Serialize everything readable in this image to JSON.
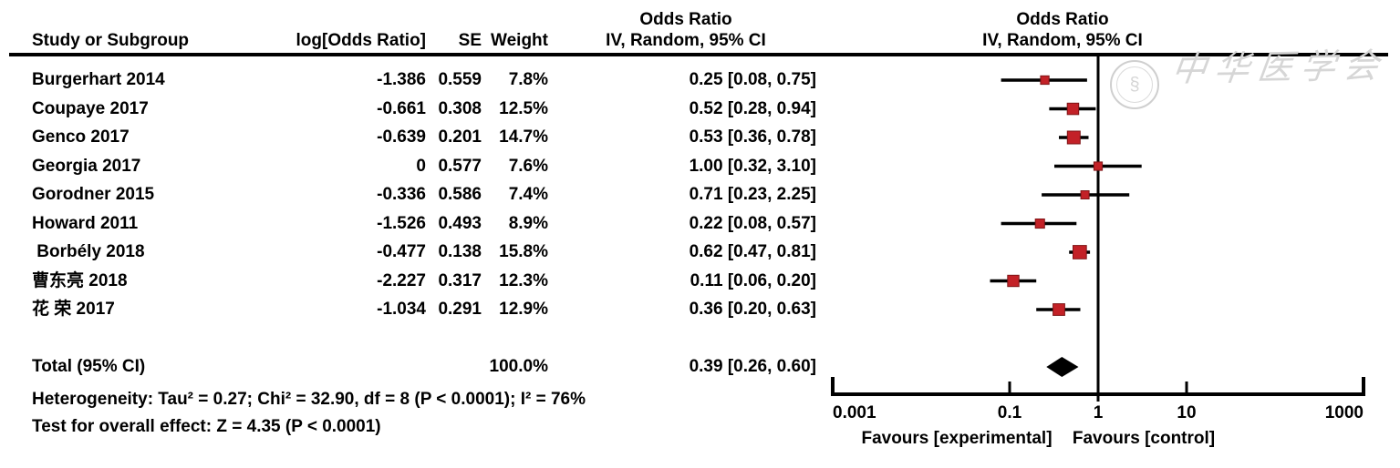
{
  "header": {
    "odds_ratio_left_title": "Odds Ratio",
    "odds_ratio_right_title": "Odds Ratio",
    "col_study": "Study or Subgroup",
    "col_log_or": "log[Odds Ratio]",
    "col_se": "SE",
    "col_weight": "Weight",
    "col_ci_left": "IV, Random, 95% CI",
    "col_ci_right": "IV, Random, 95% CI"
  },
  "table": {
    "rows": [
      {
        "study": "Burgerhart 2014",
        "log_or": "-1.386",
        "se": "0.559",
        "weight": "7.8%",
        "ci": "0.25 [0.08, 0.75]"
      },
      {
        "study": "Coupaye 2017",
        "log_or": "-0.661",
        "se": "0.308",
        "weight": "12.5%",
        "ci": "0.52 [0.28, 0.94]"
      },
      {
        "study": "Genco 2017",
        "log_or": "-0.639",
        "se": "0.201",
        "weight": "14.7%",
        "ci": "0.53 [0.36, 0.78]"
      },
      {
        "study": "Georgia 2017",
        "log_or": "0",
        "se": "0.577",
        "weight": "7.6%",
        "ci": "1.00 [0.32, 3.10]"
      },
      {
        "study": "Gorodner 2015",
        "log_or": "-0.336",
        "se": "0.586",
        "weight": "7.4%",
        "ci": "0.71 [0.23, 2.25]"
      },
      {
        "study": "Howard 2011",
        "log_or": "-1.526",
        "se": "0.493",
        "weight": "8.9%",
        "ci": "0.22 [0.08, 0.57]"
      },
      {
        "study": " Borbély 2018",
        "log_or": "-0.477",
        "se": "0.138",
        "weight": "15.8%",
        "ci": "0.62 [0.47, 0.81]"
      },
      {
        "study": "曹东亮 2018",
        "log_or": "-2.227",
        "se": "0.317",
        "weight": "12.3%",
        "ci": "0.11 [0.06, 0.20]"
      },
      {
        "study": "花 荣 2017",
        "log_or": "-1.034",
        "se": "0.291",
        "weight": "12.9%",
        "ci": "0.36 [0.20, 0.63]"
      }
    ],
    "total": {
      "label": "Total (95% CI)",
      "weight": "100.0%",
      "ci": "0.39 [0.26, 0.60]"
    }
  },
  "footnotes": {
    "heterogeneity": "Heterogeneity: Tau² = 0.27; Chi² = 32.90, df = 8 (P < 0.0001); I² = 76%",
    "overall_effect": "Test for overall effect: Z = 4.35 (P < 0.0001)"
  },
  "axis": {
    "tick_labels": [
      "0.001",
      "0.1",
      "1",
      "10",
      "1000"
    ],
    "favours_left": "Favours [experimental]",
    "favours_right": "Favours [control]"
  },
  "watermark": {
    "emblem_glyph": "§",
    "text": "中华医学会",
    "color": "#d6d6d6"
  },
  "colors": {
    "marker_fill": "#c32127",
    "marker_edge": "#7e1416",
    "line": "#000000",
    "watermark": "#d6d6d6"
  },
  "chart_data": {
    "type": "scatter",
    "subtype": "forest-plot-meta-analysis",
    "x_scale": "log",
    "x_ticks": [
      0.001,
      0.1,
      1,
      10,
      1000
    ],
    "xlim": [
      0.001,
      1000
    ],
    "no_effect_line_x": 1,
    "effect_measure": "Odds Ratio, IV, Random, 95% CI",
    "points": [
      {
        "label": "Burgerhart 2014",
        "or": 0.25,
        "ci_low": 0.08,
        "ci_high": 0.75,
        "weight_pct": 7.8
      },
      {
        "label": "Coupaye 2017",
        "or": 0.52,
        "ci_low": 0.28,
        "ci_high": 0.94,
        "weight_pct": 12.5
      },
      {
        "label": "Genco 2017",
        "or": 0.53,
        "ci_low": 0.36,
        "ci_high": 0.78,
        "weight_pct": 14.7
      },
      {
        "label": "Georgia 2017",
        "or": 1.0,
        "ci_low": 0.32,
        "ci_high": 3.1,
        "weight_pct": 7.6
      },
      {
        "label": "Gorodner 2015",
        "or": 0.71,
        "ci_low": 0.23,
        "ci_high": 2.25,
        "weight_pct": 7.4
      },
      {
        "label": "Howard 2011",
        "or": 0.22,
        "ci_low": 0.08,
        "ci_high": 0.57,
        "weight_pct": 8.9
      },
      {
        "label": "Borbély 2018",
        "or": 0.62,
        "ci_low": 0.47,
        "ci_high": 0.81,
        "weight_pct": 15.8
      },
      {
        "label": "曹东亮 2018",
        "or": 0.11,
        "ci_low": 0.06,
        "ci_high": 0.2,
        "weight_pct": 12.3
      },
      {
        "label": "花 荣 2017",
        "or": 0.36,
        "ci_low": 0.2,
        "ci_high": 0.63,
        "weight_pct": 12.9
      }
    ],
    "total_diamond": {
      "label": "Total (95% CI)",
      "or": 0.39,
      "ci_low": 0.26,
      "ci_high": 0.6,
      "weight_pct": 100.0
    },
    "heterogeneity": {
      "tau2": 0.27,
      "chi2": 32.9,
      "df": 8,
      "p": "< 0.0001",
      "i2_pct": 76
    },
    "overall_effect": {
      "z": 4.35,
      "p": "< 0.0001"
    },
    "xlabel_left": "Favours [experimental]",
    "xlabel_right": "Favours [control]"
  }
}
